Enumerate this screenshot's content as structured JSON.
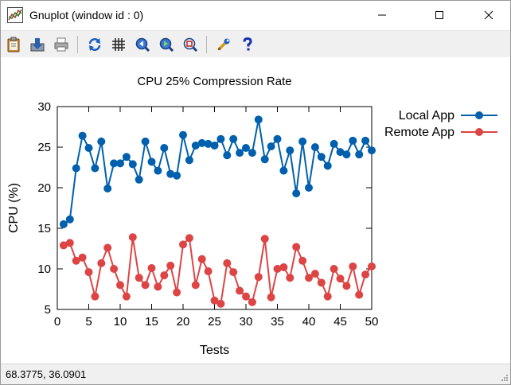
{
  "window": {
    "title": "Gnuplot (window id : 0)"
  },
  "toolbar": {
    "icons": [
      "clipboard-icon",
      "save-icon",
      "print-icon",
      "replot-icon",
      "grid-icon",
      "zoom-previous-icon",
      "zoom-next-icon",
      "unzoom-icon",
      "options-wrench-icon",
      "help-icon"
    ]
  },
  "chart_data": {
    "type": "line",
    "title": "CPU 25% Compression Rate",
    "xlabel": "Tests",
    "ylabel": "CPU (%)",
    "xlim": [
      0,
      50
    ],
    "ylim": [
      5,
      30
    ],
    "xticks": [
      0,
      5,
      10,
      15,
      20,
      25,
      30,
      35,
      40,
      45,
      50
    ],
    "yticks": [
      5,
      10,
      15,
      20,
      25,
      30
    ],
    "grid": false,
    "legend_position": "top-right-outside",
    "x": [
      1,
      2,
      3,
      4,
      5,
      6,
      7,
      8,
      9,
      10,
      11,
      12,
      13,
      14,
      15,
      16,
      17,
      18,
      19,
      20,
      21,
      22,
      23,
      24,
      25,
      26,
      27,
      28,
      29,
      30,
      31,
      32,
      33,
      34,
      35,
      36,
      37,
      38,
      39,
      40,
      41,
      42,
      43,
      44,
      45,
      46,
      47,
      48,
      49,
      50
    ],
    "series": [
      {
        "name": "Local App",
        "color": "#0060ad",
        "values": [
          15.5,
          16.1,
          22.4,
          26.4,
          24.9,
          22.4,
          25.7,
          19.9,
          23.0,
          23.0,
          23.8,
          22.9,
          21.0,
          25.7,
          23.2,
          22.1,
          24.9,
          21.7,
          21.5,
          26.5,
          23.4,
          25.2,
          25.5,
          25.4,
          25.2,
          26.0,
          24.0,
          26.0,
          24.3,
          24.9,
          24.3,
          28.4,
          23.5,
          25.1,
          26.0,
          22.1,
          24.6,
          19.3,
          25.7,
          20.0,
          25.0,
          23.8,
          22.7,
          25.4,
          24.4,
          24.1,
          25.8,
          24.1,
          25.8,
          24.6
        ]
      },
      {
        "name": "Remote App",
        "color": "#dd4444",
        "values": [
          12.9,
          13.2,
          11.0,
          11.4,
          9.6,
          6.6,
          10.7,
          12.6,
          10.0,
          8.0,
          6.6,
          13.9,
          8.9,
          8.0,
          10.1,
          7.8,
          9.2,
          10.4,
          7.1,
          13.0,
          13.8,
          8.0,
          11.2,
          9.7,
          6.1,
          5.7,
          10.7,
          9.6,
          7.3,
          6.6,
          5.9,
          9.0,
          13.7,
          6.5,
          10.0,
          10.2,
          8.9,
          12.7,
          11.0,
          8.9,
          9.4,
          8.3,
          6.6,
          10.0,
          8.8,
          7.9,
          10.3,
          6.8,
          9.3,
          10.3
        ]
      }
    ]
  },
  "status": {
    "coordinates": "68.3775,  36.0901"
  }
}
